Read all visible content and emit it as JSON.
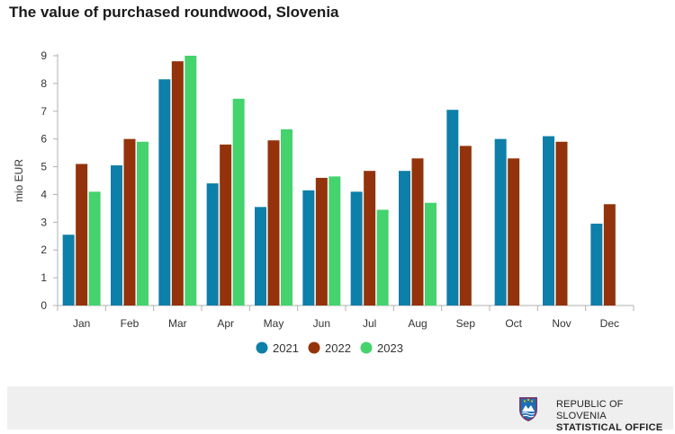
{
  "title": "The value of purchased roundwood, Slovenia",
  "colors": {
    "2021": "#0e7fa8",
    "2022": "#93330b",
    "2023": "#44d36d"
  },
  "chart_data": {
    "type": "bar",
    "title": "The value of purchased roundwood, Slovenia",
    "xlabel": "",
    "ylabel": "mio EUR",
    "ylim": [
      0,
      9
    ],
    "yticks": [
      0,
      1,
      2,
      3,
      4,
      5,
      6,
      7,
      8,
      9
    ],
    "grid": false,
    "legend": "bottom",
    "categories": [
      "Jan",
      "Feb",
      "Mar",
      "Apr",
      "May",
      "Jun",
      "Jul",
      "Aug",
      "Sep",
      "Oct",
      "Nov",
      "Dec"
    ],
    "series": [
      {
        "name": "2021",
        "values": [
          2.55,
          5.05,
          8.15,
          4.4,
          3.55,
          4.15,
          4.1,
          4.85,
          7.05,
          6.0,
          6.1,
          2.95
        ]
      },
      {
        "name": "2022",
        "values": [
          5.1,
          6.0,
          8.8,
          5.8,
          5.95,
          4.6,
          4.85,
          5.3,
          5.75,
          5.3,
          5.9,
          3.65
        ]
      },
      {
        "name": "2023",
        "values": [
          4.1,
          5.9,
          9.0,
          7.45,
          6.35,
          4.65,
          3.45,
          3.7,
          null,
          null,
          null,
          null
        ]
      }
    ]
  },
  "footer": {
    "org_line1": "REPUBLIC OF SLOVENIA",
    "org_line2": "STATISTICAL OFFICE",
    "logo": "slovenia-coat-of-arms-icon"
  }
}
